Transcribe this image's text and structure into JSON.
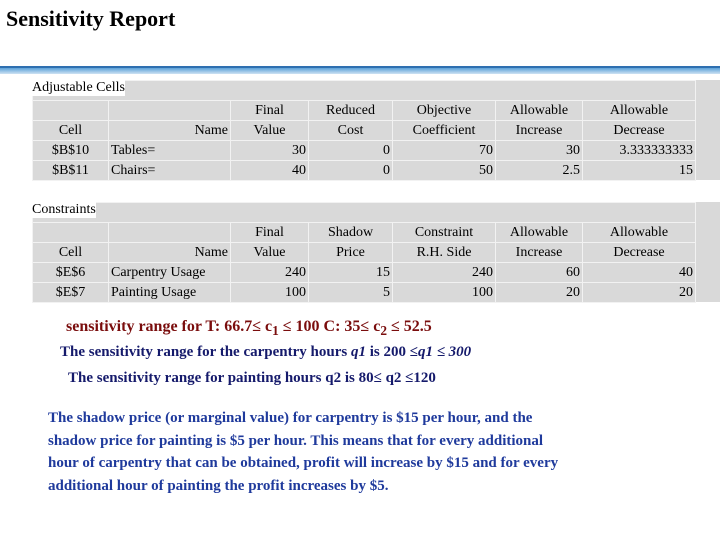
{
  "header": {
    "title": "Sensitivity Report"
  },
  "adjustable": {
    "label": "Adjustable Cells",
    "headers": [
      [
        "Cell"
      ],
      [
        "Name"
      ],
      [
        "Final",
        "Value"
      ],
      [
        "Reduced",
        "Cost"
      ],
      [
        "Objective",
        "Coefficient"
      ],
      [
        "Allowable",
        "Increase"
      ],
      [
        "Allowable",
        "Decrease"
      ]
    ],
    "rows": [
      [
        "$B$10",
        "Tables=",
        "30",
        "0",
        "70",
        "30",
        "3.333333333"
      ],
      [
        "$B$11",
        "Chairs=",
        "40",
        "0",
        "50",
        "2.5",
        "15"
      ]
    ]
  },
  "constraints": {
    "label": "Constraints",
    "headers": [
      [
        "Cell"
      ],
      [
        "Name"
      ],
      [
        "Final",
        "Value"
      ],
      [
        "Shadow",
        "Price"
      ],
      [
        "Constraint",
        "R.H. Side"
      ],
      [
        "Allowable",
        "Increase"
      ],
      [
        "Allowable",
        "Decrease"
      ]
    ],
    "rows": [
      [
        "$E$6",
        "Carpentry Usage",
        "240",
        "15",
        "240",
        "60",
        "40"
      ],
      [
        "$E$7",
        "Painting Usage",
        "100",
        "5",
        "100",
        "20",
        "20"
      ]
    ]
  },
  "ranges": [
    [
      "sensitivity range for T: 66.7≤ c",
      "1",
      " ≤ 100    C: 35≤ c",
      "2",
      " ≤ 52.5"
    ],
    [
      "The sensitivity range for the carpentry hours ",
      "q1",
      " is 200 ≤",
      "q1 ≤ 300"
    ],
    [
      "The sensitivity range for painting hours q2 is  80≤ q2 ≤120"
    ]
  ],
  "explanation": [
    "The shadow price (or marginal value) for carpentry is $15 per hour, and the",
    "shadow price for painting is $5 per hour. This means that for every additional",
    "hour of carpentry that can be obtained, profit will increase by $15 and for every",
    "additional hour of painting the profit increases by $5."
  ]
}
